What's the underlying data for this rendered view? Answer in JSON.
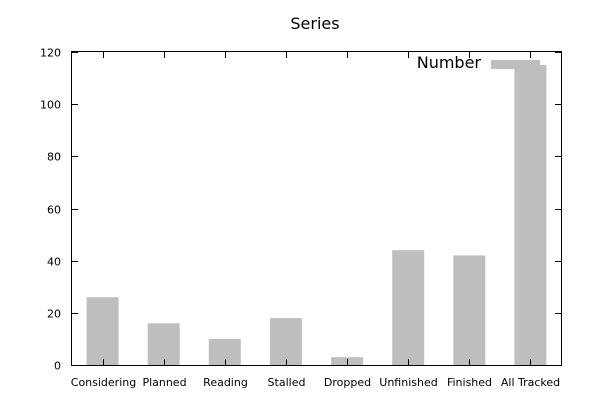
{
  "chart_data": {
    "type": "bar",
    "title": "Series",
    "xlabel": "",
    "ylabel": "",
    "categories": [
      "Considering",
      "Planned",
      "Reading",
      "Stalled",
      "Dropped",
      "Unfinished",
      "Finished",
      "All Tracked"
    ],
    "series": [
      {
        "name": "Number",
        "values": [
          26,
          16,
          10,
          18,
          3,
          44,
          42,
          115
        ],
        "color": "#bebebe"
      }
    ],
    "ylim": [
      0,
      120
    ],
    "yticks": [
      0,
      20,
      40,
      60,
      80,
      100,
      120
    ],
    "grid": false,
    "legend_position": "top-right"
  }
}
